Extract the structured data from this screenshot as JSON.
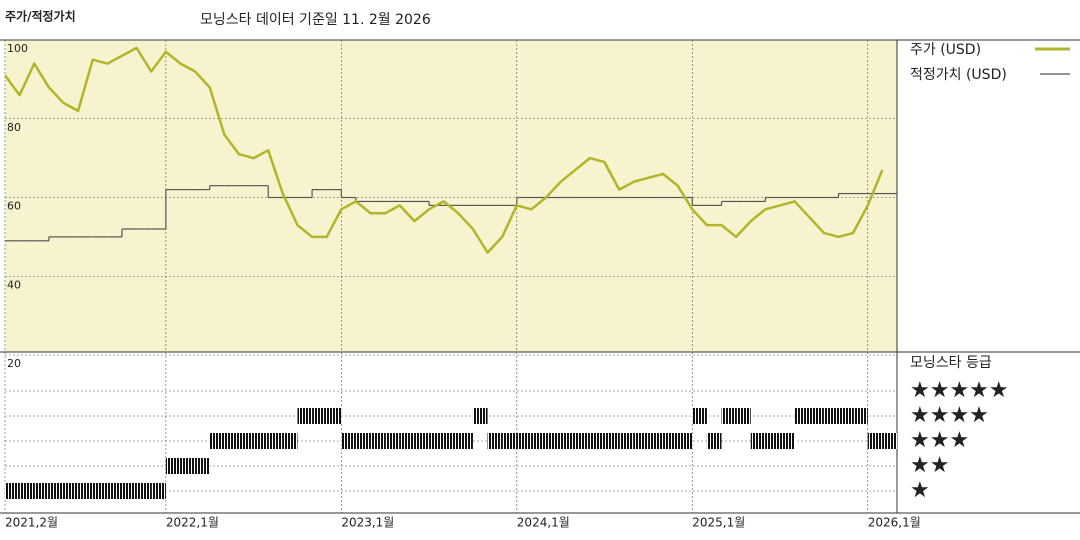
{
  "chart_data": [
    {
      "type": "line",
      "title": "주가/적정가치",
      "subtitle": "모닝스타 데이터 기준일 11. 2월 2026",
      "x": [
        "2021-02",
        "2021-03",
        "2021-04",
        "2021-05",
        "2021-06",
        "2021-07",
        "2021-08",
        "2021-09",
        "2021-10",
        "2021-11",
        "2021-12",
        "2022-01",
        "2022-02",
        "2022-03",
        "2022-04",
        "2022-05",
        "2022-06",
        "2022-07",
        "2022-08",
        "2022-09",
        "2022-10",
        "2022-11",
        "2022-12",
        "2023-01",
        "2023-02",
        "2023-03",
        "2023-04",
        "2023-05",
        "2023-06",
        "2023-07",
        "2023-08",
        "2023-09",
        "2023-10",
        "2023-11",
        "2023-12",
        "2024-01",
        "2024-02",
        "2024-03",
        "2024-04",
        "2024-05",
        "2024-06",
        "2024-07",
        "2024-08",
        "2024-09",
        "2024-10",
        "2024-11",
        "2024-12",
        "2025-01",
        "2025-02",
        "2025-03",
        "2025-04",
        "2025-05",
        "2025-06",
        "2025-07",
        "2025-08",
        "2025-09",
        "2025-10",
        "2025-11",
        "2025-12",
        "2026-01",
        "2026-02"
      ],
      "series": [
        {
          "name": "주가 (USD)",
          "color": "#b2b52a",
          "values": [
            91,
            86,
            94,
            88,
            84,
            82,
            95,
            94,
            96,
            98,
            92,
            97,
            94,
            92,
            88,
            76,
            71,
            70,
            72,
            61,
            53,
            50,
            50,
            57,
            59,
            56,
            56,
            58,
            54,
            57,
            59,
            56,
            52,
            46,
            50,
            58,
            57,
            60,
            64,
            67,
            70,
            69,
            62,
            64,
            65,
            66,
            63,
            57,
            53,
            53,
            50,
            54,
            57,
            58,
            59,
            55,
            51,
            50,
            51,
            58,
            67
          ]
        },
        {
          "name": "적정가치 (USD)",
          "color": "#555555",
          "values": [
            49,
            49,
            49,
            50,
            50,
            50,
            50,
            50,
            52,
            52,
            52,
            62,
            62,
            62,
            63,
            63,
            63,
            63,
            60,
            60,
            60,
            62,
            62,
            60,
            59,
            59,
            59,
            59,
            59,
            58,
            58,
            58,
            58,
            58,
            58,
            60,
            60,
            60,
            60,
            60,
            60,
            60,
            60,
            60,
            60,
            60,
            60,
            58,
            58,
            59,
            59,
            59,
            60,
            60,
            60,
            60,
            60,
            61,
            61,
            61,
            61
          ]
        }
      ],
      "xlim": [
        "2021-02",
        "2026-03"
      ],
      "xticks": [
        {
          "value": "2021-02",
          "label": "2021,2월"
        },
        {
          "value": "2022-01",
          "label": "2022,1월"
        },
        {
          "value": "2023-01",
          "label": "2023,1월"
        },
        {
          "value": "2024-01",
          "label": "2024,1월"
        },
        {
          "value": "2025-01",
          "label": "2025,1월"
        },
        {
          "value": "2026-01",
          "label": "2026,1월"
        }
      ],
      "ylim": [
        20,
        100
      ],
      "yticks": [
        100,
        80,
        60,
        40,
        20
      ],
      "grid": true,
      "legend": "right"
    },
    {
      "type": "rating",
      "title": "모닝스타 등급",
      "levels": [
        "★",
        "★★",
        "★★★",
        "★★★★",
        "★★★★★"
      ],
      "x": [
        "2021-02",
        "2021-03",
        "2021-04",
        "2021-05",
        "2021-06",
        "2021-07",
        "2021-08",
        "2021-09",
        "2021-10",
        "2021-11",
        "2021-12",
        "2022-01",
        "2022-02",
        "2022-03",
        "2022-04",
        "2022-05",
        "2022-06",
        "2022-07",
        "2022-08",
        "2022-09",
        "2022-10",
        "2022-11",
        "2022-12",
        "2023-01",
        "2023-02",
        "2023-03",
        "2023-04",
        "2023-05",
        "2023-06",
        "2023-07",
        "2023-08",
        "2023-09",
        "2023-10",
        "2023-11",
        "2023-12",
        "2024-01",
        "2024-02",
        "2024-03",
        "2024-04",
        "2024-05",
        "2024-06",
        "2024-07",
        "2024-08",
        "2024-09",
        "2024-10",
        "2024-11",
        "2024-12",
        "2025-01",
        "2025-02",
        "2025-03",
        "2025-04",
        "2025-05",
        "2025-06",
        "2025-07",
        "2025-08",
        "2025-09",
        "2025-10",
        "2025-11",
        "2025-12",
        "2026-01",
        "2026-02"
      ],
      "values": [
        1,
        1,
        1,
        1,
        1,
        1,
        1,
        1,
        1,
        1,
        1,
        2,
        2,
        2,
        3,
        3,
        3,
        3,
        3,
        3,
        4,
        4,
        4,
        3,
        3,
        3,
        3,
        3,
        3,
        3,
        3,
        3,
        4,
        3,
        3,
        3,
        3,
        3,
        3,
        3,
        3,
        3,
        3,
        3,
        3,
        3,
        3,
        4,
        3,
        4,
        4,
        3,
        3,
        3,
        4,
        4,
        4,
        4,
        4,
        3,
        3
      ]
    }
  ]
}
